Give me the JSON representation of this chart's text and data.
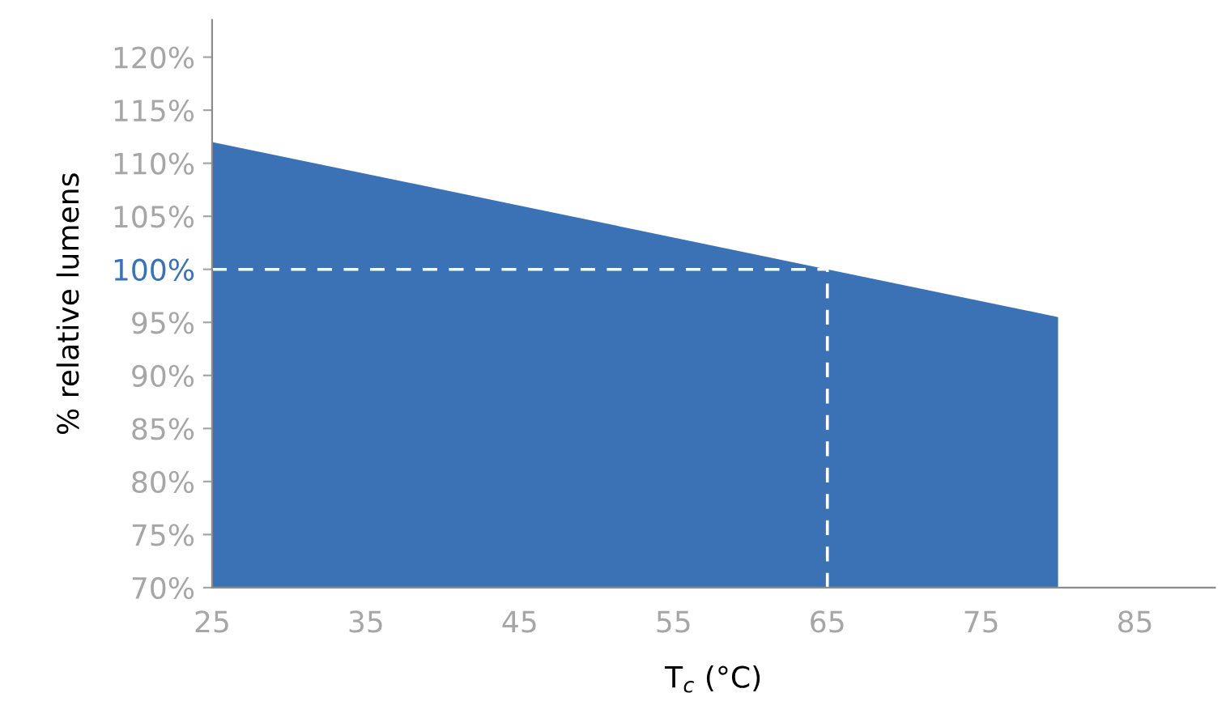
{
  "chart_data": {
    "type": "area",
    "xlabel": "T$_{c}$ (°C)",
    "ylabel": "% relative lumens",
    "x": [
      25,
      65,
      80
    ],
    "series": [
      {
        "color": "#3b72b5",
        "values": [
          112,
          100,
          95.5
        ]
      }
    ],
    "xlim": [
      25,
      90.2
    ],
    "xticks": [
      25,
      35,
      45,
      55,
      65,
      75,
      85
    ],
    "ylim": [
      70,
      123.5
    ],
    "yticks": [
      {
        "value": 70,
        "label": "70%"
      },
      {
        "value": 75,
        "label": "75%"
      },
      {
        "value": 80,
        "label": "80%"
      },
      {
        "value": 85,
        "label": "85%"
      },
      {
        "value": 90,
        "label": "90%"
      },
      {
        "value": 95,
        "label": "95%"
      },
      {
        "value": 100,
        "label": "100%"
      },
      {
        "value": 105,
        "label": "105%"
      },
      {
        "value": 110,
        "label": "110%"
      },
      {
        "value": 115,
        "label": "115%"
      },
      {
        "value": 120,
        "label": "120%"
      }
    ],
    "ref_lines": [
      {
        "axis": "y",
        "value": 100,
        "color": "#ffffff",
        "line_style": "dashed"
      },
      {
        "axis": "x",
        "value": 65,
        "color": "#ffffff",
        "line_style": "dashed"
      }
    ],
    "grid": false,
    "legend": false
  }
}
